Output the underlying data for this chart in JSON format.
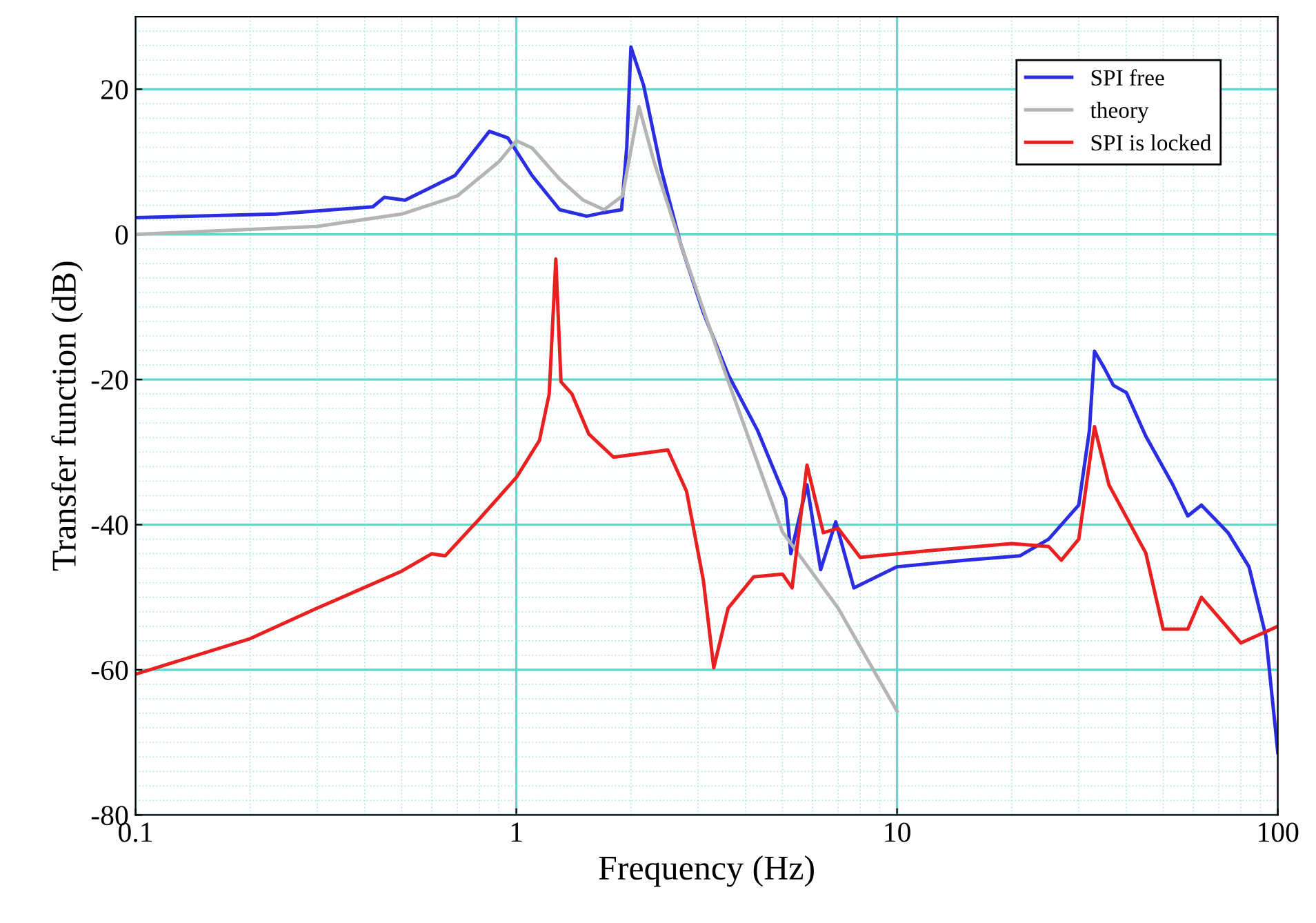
{
  "chart_data": {
    "type": "line",
    "xlabel": "Frequency (Hz)",
    "ylabel": "Transfer function (dB)",
    "log": "x",
    "xlim": [
      0.1,
      100
    ],
    "xticks": [
      0.1,
      {
        "value": 0.2,
        "label": null
      },
      {
        "value": 0.3,
        "label": null
      },
      {
        "value": 0.4,
        "label": null
      },
      {
        "value": 0.5,
        "label": null
      },
      {
        "value": 0.6,
        "label": null
      },
      {
        "value": 0.7,
        "label": null
      },
      {
        "value": 0.8,
        "label": null
      },
      {
        "value": 0.9,
        "label": null
      },
      1,
      {
        "value": 2,
        "label": null
      },
      {
        "value": 3,
        "label": null
      },
      {
        "value": 4,
        "label": null
      },
      {
        "value": 5,
        "label": null
      },
      {
        "value": 6,
        "label": null
      },
      {
        "value": 7,
        "label": null
      },
      {
        "value": 8,
        "label": null
      },
      {
        "value": 9,
        "label": null
      },
      10,
      {
        "value": 20,
        "label": null
      },
      {
        "value": 30,
        "label": null
      },
      {
        "value": 40,
        "label": null
      },
      {
        "value": 50,
        "label": null
      },
      {
        "value": 60,
        "label": null
      },
      {
        "value": 70,
        "label": null
      },
      {
        "value": 80,
        "label": null
      },
      {
        "value": 90,
        "label": null
      },
      100
    ],
    "ylim": [
      -80,
      30
    ],
    "yticks": [
      -80,
      {
        "value": -78,
        "label": null
      },
      {
        "value": -76,
        "label": null
      },
      {
        "value": -74,
        "label": null
      },
      {
        "value": -72,
        "label": null
      },
      {
        "value": -70,
        "label": null
      },
      {
        "value": -68,
        "label": null
      },
      {
        "value": -66,
        "label": null
      },
      {
        "value": -64,
        "label": null
      },
      {
        "value": -62,
        "label": null
      },
      -60,
      {
        "value": -58,
        "label": null
      },
      {
        "value": -56,
        "label": null
      },
      {
        "value": -54,
        "label": null
      },
      {
        "value": -52,
        "label": null
      },
      {
        "value": -50,
        "label": null
      },
      {
        "value": -48,
        "label": null
      },
      {
        "value": -46,
        "label": null
      },
      {
        "value": -44,
        "label": null
      },
      {
        "value": -42,
        "label": null
      },
      -40,
      {
        "value": -38,
        "label": null
      },
      {
        "value": -36,
        "label": null
      },
      {
        "value": -34,
        "label": null
      },
      {
        "value": -32,
        "label": null
      },
      {
        "value": -30,
        "label": null
      },
      {
        "value": -28,
        "label": null
      },
      {
        "value": -26,
        "label": null
      },
      {
        "value": -24,
        "label": null
      },
      {
        "value": -22,
        "label": null
      },
      -20,
      {
        "value": -18,
        "label": null
      },
      {
        "value": -16,
        "label": null
      },
      {
        "value": -14,
        "label": null
      },
      {
        "value": -12,
        "label": null
      },
      {
        "value": -10,
        "label": null
      },
      {
        "value": -8,
        "label": null
      },
      {
        "value": -6,
        "label": null
      },
      {
        "value": -4,
        "label": null
      },
      {
        "value": -2,
        "label": null
      },
      0,
      {
        "value": 2,
        "label": null
      },
      {
        "value": 4,
        "label": null
      },
      {
        "value": 6,
        "label": null
      },
      {
        "value": 8,
        "label": null
      },
      {
        "value": 10,
        "label": null
      },
      {
        "value": 12,
        "label": null
      },
      {
        "value": 14,
        "label": null
      },
      {
        "value": 16,
        "label": null
      },
      {
        "value": 18,
        "label": null
      },
      20,
      {
        "value": 22,
        "label": null
      },
      {
        "value": 24,
        "label": null
      },
      {
        "value": 26,
        "label": null
      },
      {
        "value": 28,
        "label": null
      }
    ],
    "grid": true,
    "legend": "top right",
    "line_style": "solid",
    "series": [
      {
        "name": "SPI free",
        "color": "#2a2ee0",
        "x": [
          0.1,
          0.234,
          0.42,
          0.45,
          0.51,
          0.69,
          0.85,
          0.95,
          1.1,
          1.3,
          1.53,
          1.7,
          1.89,
          1.95,
          2.0,
          2.16,
          2.4,
          2.7,
          3.1,
          3.6,
          4.3,
          5.1,
          5.26,
          5.8,
          6.3,
          6.9,
          7.7,
          10,
          15,
          21,
          25,
          30,
          32,
          33,
          35,
          37,
          40,
          45,
          53,
          58,
          63,
          74,
          84,
          93,
          100
        ],
        "values": [
          2.3,
          2.8,
          3.8,
          5.1,
          4.7,
          8.1,
          14.2,
          13.3,
          8.1,
          3.4,
          2.5,
          3.0,
          3.4,
          12,
          25.8,
          20.5,
          9,
          -1.3,
          -10.8,
          -19.3,
          -27,
          -36.4,
          -44,
          -34.5,
          -46.2,
          -39.6,
          -48.7,
          -45.8,
          -44.9,
          -44.3,
          -42,
          -37.3,
          -27,
          -16.1,
          -18.4,
          -20.8,
          -21.8,
          -27.8,
          -34.5,
          -38.8,
          -37.3,
          -41.1,
          -45.8,
          -55.3,
          -71.4
        ]
      },
      {
        "name": "theory",
        "color": "#b4b4b4",
        "x": [
          0.1,
          0.3,
          0.5,
          0.7,
          0.9,
          1.0,
          1.1,
          1.3,
          1.5,
          1.7,
          1.9,
          2.1,
          2.3,
          2.7,
          3.5,
          5,
          7,
          10
        ],
        "values": [
          0,
          1.1,
          2.8,
          5.3,
          10,
          12.9,
          11.9,
          7.6,
          4.7,
          3.4,
          5.3,
          17.6,
          10,
          -1.3,
          -18.4,
          -41,
          -51.5,
          -65.7
        ]
      },
      {
        "name": "SPI is locked",
        "color": "#e82020",
        "x": [
          0.1,
          0.2,
          0.3,
          0.5,
          0.6,
          0.65,
          0.8,
          1.0,
          1.15,
          1.22,
          1.27,
          1.31,
          1.4,
          1.55,
          1.8,
          2.5,
          2.8,
          3.1,
          3.3,
          3.6,
          4.2,
          5.0,
          5.3,
          5.8,
          6.4,
          7,
          8,
          12,
          20,
          25,
          27,
          30,
          33,
          36,
          45,
          50,
          58,
          63,
          80,
          100
        ],
        "values": [
          -60.6,
          -55.7,
          -51.5,
          -46.4,
          -44,
          -44.3,
          -39.2,
          -33.5,
          -28.4,
          -22,
          -3.4,
          -20.3,
          -22,
          -27.5,
          -30.7,
          -29.7,
          -35.4,
          -47.7,
          -59.7,
          -51.5,
          -47.2,
          -46.8,
          -48.7,
          -31.8,
          -41.1,
          -40.5,
          -44.5,
          -43.6,
          -42.6,
          -43,
          -44.9,
          -42,
          -26.5,
          -34.5,
          -43.9,
          -54.4,
          -54.4,
          -50,
          -56.3,
          -54
        ]
      }
    ]
  }
}
